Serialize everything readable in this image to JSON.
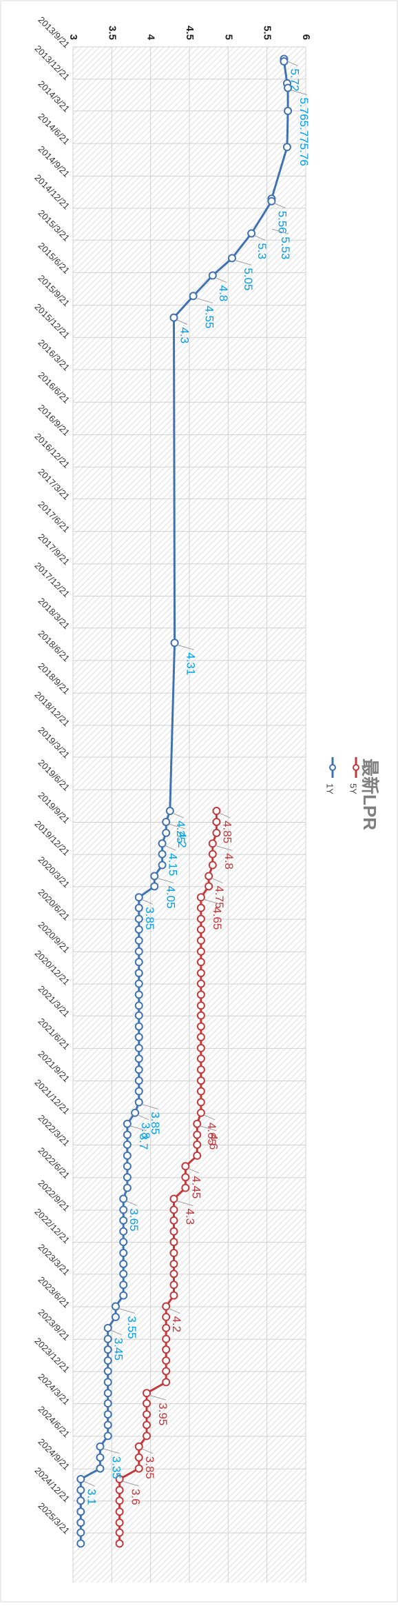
{
  "chart_data": {
    "type": "line",
    "title": "最新LPR",
    "orientation": "rotated-90-clockwise",
    "value_axis": {
      "min": 3,
      "max": 6,
      "ticks": [
        3,
        3.5,
        4,
        4.5,
        5,
        5.5,
        6
      ]
    },
    "date_axis": {
      "start": "2013/9/21",
      "end": "2025/3/21",
      "tick_labels": [
        "2013/9/21",
        "2013/12/21",
        "2014/3/21",
        "2014/6/21",
        "2014/9/21",
        "2014/12/21",
        "2015/3/21",
        "2015/6/21",
        "2015/9/21",
        "2015/12/21",
        "2016/3/21",
        "2016/6/21",
        "2016/9/21",
        "2016/12/21",
        "2017/3/21",
        "2017/6/21",
        "2017/9/21",
        "2017/12/21",
        "2018/3/21",
        "2018/6/21",
        "2018/9/21",
        "2018/12/21",
        "2019/3/21",
        "2019/6/21",
        "2019/9/21",
        "2019/12/21",
        "2020/3/21",
        "2020/6/21",
        "2020/9/21",
        "2020/12/21",
        "2021/3/21",
        "2021/6/21",
        "2021/9/21",
        "2021/12/21",
        "2022/3/21",
        "2022/6/21",
        "2022/9/21",
        "2022/12/21",
        "2023/3/21",
        "2023/6/21",
        "2023/9/21",
        "2023/12/21",
        "2024/3/21",
        "2024/6/21",
        "2024/9/21",
        "2024/12/21",
        "2025/3/21"
      ]
    },
    "grid": true,
    "legend": {
      "position": "right",
      "items": [
        {
          "name": "1Y",
          "color": "#3f72af"
        },
        {
          "name": "5Y",
          "color": "#c0393b"
        }
      ]
    },
    "series": [
      {
        "name": "1Y",
        "color": "#3f72af",
        "label_color": "#00a0e9",
        "points": [
          {
            "date": "2013/10/25",
            "value": 5.72
          },
          {
            "date": "2013/11/1",
            "value": 5.72
          },
          {
            "date": "2014/1/2",
            "value": 5.76
          },
          {
            "date": "2014/1/15",
            "value": 5.77
          },
          {
            "date": "2014/3/21",
            "value": 5.77
          },
          {
            "date": "2014/7/1",
            "value": 5.76
          },
          {
            "date": "2014/11/24",
            "value": 5.56
          },
          {
            "date": "2014/12/1",
            "value": 5.56
          },
          {
            "date": "2015/3/2",
            "value": 5.3
          },
          {
            "date": "2015/5/11",
            "value": 5.05
          },
          {
            "date": "2015/6/29",
            "value": 4.8
          },
          {
            "date": "2015/8/26",
            "value": 4.55
          },
          {
            "date": "2015/10/26",
            "value": 4.3
          },
          {
            "date": "2018/5/2",
            "value": 4.31
          },
          {
            "date": "2019/8/20",
            "value": 4.25
          },
          {
            "date": "2019/9/20",
            "value": 4.2
          },
          {
            "date": "2019/10/21",
            "value": 4.2
          },
          {
            "date": "2019/11/20",
            "value": 4.15
          },
          {
            "date": "2019/12/20",
            "value": 4.15
          },
          {
            "date": "2020/1/20",
            "value": 4.15
          },
          {
            "date": "2020/2/20",
            "value": 4.05
          },
          {
            "date": "2020/3/20",
            "value": 4.05
          },
          {
            "date": "2020/4/20",
            "value": 3.85
          },
          {
            "date": "2020/5/20",
            "value": 3.85
          },
          {
            "date": "2020/6/20",
            "value": 3.85
          },
          {
            "date": "2020/7/20",
            "value": 3.85
          },
          {
            "date": "2020/8/20",
            "value": 3.85
          },
          {
            "date": "2020/9/20",
            "value": 3.85
          },
          {
            "date": "2020/10/20",
            "value": 3.85
          },
          {
            "date": "2020/11/20",
            "value": 3.85
          },
          {
            "date": "2020/12/20",
            "value": 3.85
          },
          {
            "date": "2021/1/20",
            "value": 3.85
          },
          {
            "date": "2021/2/20",
            "value": 3.85
          },
          {
            "date": "2021/3/20",
            "value": 3.85
          },
          {
            "date": "2021/4/20",
            "value": 3.85
          },
          {
            "date": "2021/5/20",
            "value": 3.85
          },
          {
            "date": "2021/6/20",
            "value": 3.85
          },
          {
            "date": "2021/7/20",
            "value": 3.85
          },
          {
            "date": "2021/8/20",
            "value": 3.85
          },
          {
            "date": "2021/9/20",
            "value": 3.85
          },
          {
            "date": "2021/10/20",
            "value": 3.85
          },
          {
            "date": "2021/11/20",
            "value": 3.85
          },
          {
            "date": "2021/12/20",
            "value": 3.8
          },
          {
            "date": "2022/1/20",
            "value": 3.7
          },
          {
            "date": "2022/2/20",
            "value": 3.7
          },
          {
            "date": "2022/3/20",
            "value": 3.7
          },
          {
            "date": "2022/4/20",
            "value": 3.7
          },
          {
            "date": "2022/5/20",
            "value": 3.7
          },
          {
            "date": "2022/6/20",
            "value": 3.7
          },
          {
            "date": "2022/7/20",
            "value": 3.7
          },
          {
            "date": "2022/8/20",
            "value": 3.65
          },
          {
            "date": "2022/9/20",
            "value": 3.65
          },
          {
            "date": "2022/10/20",
            "value": 3.65
          },
          {
            "date": "2022/11/20",
            "value": 3.65
          },
          {
            "date": "2022/12/20",
            "value": 3.65
          },
          {
            "date": "2023/1/20",
            "value": 3.65
          },
          {
            "date": "2023/2/20",
            "value": 3.65
          },
          {
            "date": "2023/3/20",
            "value": 3.65
          },
          {
            "date": "2023/4/20",
            "value": 3.65
          },
          {
            "date": "2023/5/20",
            "value": 3.65
          },
          {
            "date": "2023/6/20",
            "value": 3.55
          },
          {
            "date": "2023/7/20",
            "value": 3.55
          },
          {
            "date": "2023/8/20",
            "value": 3.45
          },
          {
            "date": "2023/9/20",
            "value": 3.45
          },
          {
            "date": "2023/10/20",
            "value": 3.45
          },
          {
            "date": "2023/11/20",
            "value": 3.45
          },
          {
            "date": "2023/12/20",
            "value": 3.45
          },
          {
            "date": "2024/1/20",
            "value": 3.45
          },
          {
            "date": "2024/2/20",
            "value": 3.45
          },
          {
            "date": "2024/3/20",
            "value": 3.45
          },
          {
            "date": "2024/4/20",
            "value": 3.45
          },
          {
            "date": "2024/5/20",
            "value": 3.45
          },
          {
            "date": "2024/6/20",
            "value": 3.45
          },
          {
            "date": "2024/7/20",
            "value": 3.35
          },
          {
            "date": "2024/8/20",
            "value": 3.35
          },
          {
            "date": "2024/9/20",
            "value": 3.35
          },
          {
            "date": "2024/10/20",
            "value": 3.1
          },
          {
            "date": "2024/11/20",
            "value": 3.1
          },
          {
            "date": "2024/12/20",
            "value": 3.1
          },
          {
            "date": "2025/1/20",
            "value": 3.1
          },
          {
            "date": "2025/2/20",
            "value": 3.1
          },
          {
            "date": "2025/3/20",
            "value": 3.1
          },
          {
            "date": "2025/4/20",
            "value": 3.1
          }
        ],
        "labels": [
          {
            "text": "5.72",
            "date": "2013/10/25",
            "value": 5.72
          },
          {
            "text": "5.765.775.76",
            "date": "2014/1/15",
            "value": 5.77
          },
          {
            "text": "5.56",
            "date": "2014/12/1",
            "value": 5.56
          },
          {
            "text": "5.53",
            "date": "2015/2/12",
            "value": 5.53
          },
          {
            "text": "5.3",
            "date": "2015/3/2",
            "value": 5.3
          },
          {
            "text": "5.05",
            "date": "2015/5/11",
            "value": 5.05
          },
          {
            "text": "4.8",
            "date": "2015/6/29",
            "value": 4.8
          },
          {
            "text": "4.55",
            "date": "2015/8/26",
            "value": 4.55
          },
          {
            "text": "4.3",
            "date": "2015/10/26",
            "value": 4.3
          },
          {
            "text": "4.31",
            "date": "2018/5/2",
            "value": 4.31
          },
          {
            "text": "4.25",
            "date": "2019/8/20",
            "value": 4.25
          },
          {
            "text": "4.2",
            "date": "2019/9/20",
            "value": 4.2
          },
          {
            "text": "4.15",
            "date": "2019/11/20",
            "value": 4.15
          },
          {
            "text": "4.05",
            "date": "2020/2/20",
            "value": 4.05
          },
          {
            "text": "3.85",
            "date": "2020/4/20",
            "value": 3.85
          },
          {
            "text": "3.85",
            "date": "2021/11/20",
            "value": 3.85
          },
          {
            "text": "3.8",
            "date": "2021/12/20",
            "value": 3.8
          },
          {
            "text": "3.7",
            "date": "2022/1/20",
            "value": 3.7
          },
          {
            "text": "3.65",
            "date": "2022/8/20",
            "value": 3.65
          },
          {
            "text": "3.55",
            "date": "2023/6/20",
            "value": 3.55
          },
          {
            "text": "3.45",
            "date": "2023/8/20",
            "value": 3.45
          },
          {
            "text": "3.35",
            "date": "2024/7/20",
            "value": 3.35
          },
          {
            "text": "3.1",
            "date": "2024/10/20",
            "value": 3.1
          }
        ]
      },
      {
        "name": "5Y",
        "color": "#c0393b",
        "label_color": "#c0393b",
        "points": [
          {
            "date": "2019/8/20",
            "value": 4.85
          },
          {
            "date": "2019/9/20",
            "value": 4.85
          },
          {
            "date": "2019/10/21",
            "value": 4.85
          },
          {
            "date": "2019/11/20",
            "value": 4.8
          },
          {
            "date": "2019/12/20",
            "value": 4.8
          },
          {
            "date": "2020/1/20",
            "value": 4.8
          },
          {
            "date": "2020/2/20",
            "value": 4.75
          },
          {
            "date": "2020/3/20",
            "value": 4.75
          },
          {
            "date": "2020/4/20",
            "value": 4.65
          },
          {
            "date": "2020/5/20",
            "value": 4.65
          },
          {
            "date": "2020/6/20",
            "value": 4.65
          },
          {
            "date": "2020/7/20",
            "value": 4.65
          },
          {
            "date": "2020/8/20",
            "value": 4.65
          },
          {
            "date": "2020/9/20",
            "value": 4.65
          },
          {
            "date": "2020/10/20",
            "value": 4.65
          },
          {
            "date": "2020/11/20",
            "value": 4.65
          },
          {
            "date": "2020/12/20",
            "value": 4.65
          },
          {
            "date": "2021/1/20",
            "value": 4.65
          },
          {
            "date": "2021/2/20",
            "value": 4.65
          },
          {
            "date": "2021/3/20",
            "value": 4.65
          },
          {
            "date": "2021/4/20",
            "value": 4.65
          },
          {
            "date": "2021/5/20",
            "value": 4.65
          },
          {
            "date": "2021/6/20",
            "value": 4.65
          },
          {
            "date": "2021/7/20",
            "value": 4.65
          },
          {
            "date": "2021/8/20",
            "value": 4.65
          },
          {
            "date": "2021/9/20",
            "value": 4.65
          },
          {
            "date": "2021/10/20",
            "value": 4.65
          },
          {
            "date": "2021/11/20",
            "value": 4.65
          },
          {
            "date": "2021/12/20",
            "value": 4.65
          },
          {
            "date": "2022/1/20",
            "value": 4.6
          },
          {
            "date": "2022/2/20",
            "value": 4.6
          },
          {
            "date": "2022/3/20",
            "value": 4.6
          },
          {
            "date": "2022/4/20",
            "value": 4.6
          },
          {
            "date": "2022/5/20",
            "value": 4.45
          },
          {
            "date": "2022/6/20",
            "value": 4.45
          },
          {
            "date": "2022/7/20",
            "value": 4.45
          },
          {
            "date": "2022/8/20",
            "value": 4.3
          },
          {
            "date": "2022/9/20",
            "value": 4.3
          },
          {
            "date": "2022/10/20",
            "value": 4.3
          },
          {
            "date": "2022/11/20",
            "value": 4.3
          },
          {
            "date": "2022/12/20",
            "value": 4.3
          },
          {
            "date": "2023/1/20",
            "value": 4.3
          },
          {
            "date": "2023/2/20",
            "value": 4.3
          },
          {
            "date": "2023/3/20",
            "value": 4.3
          },
          {
            "date": "2023/4/20",
            "value": 4.3
          },
          {
            "date": "2023/5/20",
            "value": 4.3
          },
          {
            "date": "2023/6/20",
            "value": 4.2
          },
          {
            "date": "2023/7/20",
            "value": 4.2
          },
          {
            "date": "2023/8/20",
            "value": 4.2
          },
          {
            "date": "2023/9/20",
            "value": 4.2
          },
          {
            "date": "2023/10/20",
            "value": 4.2
          },
          {
            "date": "2023/11/20",
            "value": 4.2
          },
          {
            "date": "2023/12/20",
            "value": 4.2
          },
          {
            "date": "2024/1/20",
            "value": 4.2
          },
          {
            "date": "2024/2/20",
            "value": 3.95
          },
          {
            "date": "2024/3/20",
            "value": 3.95
          },
          {
            "date": "2024/4/20",
            "value": 3.95
          },
          {
            "date": "2024/5/20",
            "value": 3.95
          },
          {
            "date": "2024/6/20",
            "value": 3.95
          },
          {
            "date": "2024/7/20",
            "value": 3.85
          },
          {
            "date": "2024/8/20",
            "value": 3.85
          },
          {
            "date": "2024/9/20",
            "value": 3.85
          },
          {
            "date": "2024/10/20",
            "value": 3.6
          },
          {
            "date": "2024/11/20",
            "value": 3.6
          },
          {
            "date": "2024/12/20",
            "value": 3.6
          },
          {
            "date": "2025/1/20",
            "value": 3.6
          },
          {
            "date": "2025/2/20",
            "value": 3.6
          },
          {
            "date": "2025/3/20",
            "value": 3.6
          },
          {
            "date": "2025/4/20",
            "value": 3.6
          }
        ],
        "labels": [
          {
            "text": "4.85",
            "date": "2019/8/20",
            "value": 4.85
          },
          {
            "text": "4.8",
            "date": "2019/11/20",
            "value": 4.8
          },
          {
            "text": "4.75",
            "date": "2020/2/20",
            "value": 4.75
          },
          {
            "text": "4.65",
            "date": "2020/4/20",
            "value": 4.65
          },
          {
            "text": "4.65",
            "date": "2021/12/20",
            "value": 4.65
          },
          {
            "text": "4.6",
            "date": "2022/1/20",
            "value": 4.6
          },
          {
            "text": "4.45",
            "date": "2022/5/20",
            "value": 4.45
          },
          {
            "text": "4.3",
            "date": "2022/8/20",
            "value": 4.3
          },
          {
            "text": "4.2",
            "date": "2023/6/20",
            "value": 4.2
          },
          {
            "text": "3.95",
            "date": "2024/2/20",
            "value": 3.95
          },
          {
            "text": "3.85",
            "date": "2024/7/20",
            "value": 3.85
          },
          {
            "text": "3.6",
            "date": "2024/10/20",
            "value": 3.6
          }
        ]
      }
    ]
  }
}
